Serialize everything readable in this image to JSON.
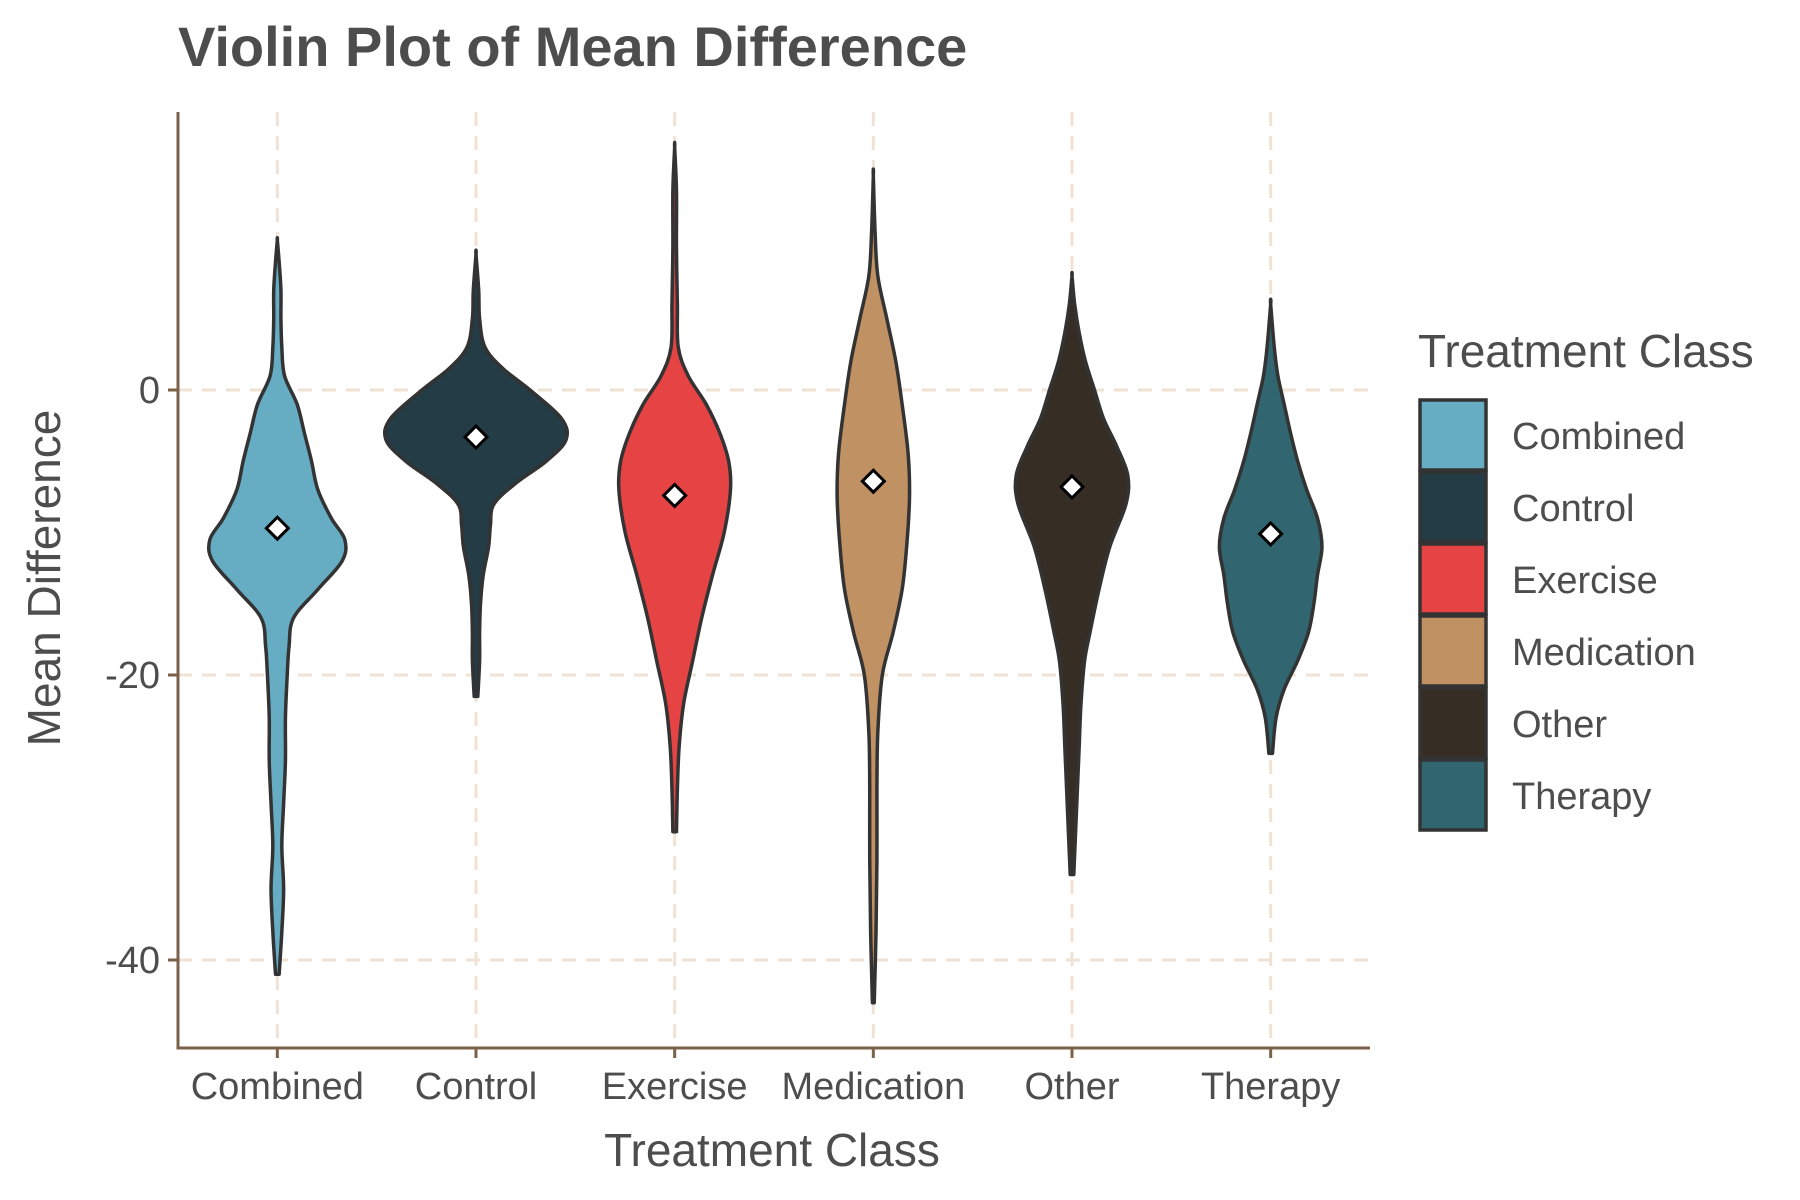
{
  "chart_data": {
    "type": "violin",
    "title": "Violin Plot of Mean Difference",
    "xlabel": "Treatment Class",
    "ylabel": "Mean Difference",
    "ylim": [
      -46,
      19
    ],
    "yticks": [
      0,
      -20,
      -40
    ],
    "ytick_labels": [
      "0",
      "-20",
      "-40"
    ],
    "grid": true,
    "legend": {
      "title": "Treatment Class",
      "placement": "right"
    },
    "categories": [
      "Combined",
      "Control",
      "Exercise",
      "Medication",
      "Other",
      "Therapy"
    ],
    "series": [
      {
        "name": "Combined",
        "color": "#66adc4",
        "min": -41,
        "max": 10.5,
        "mean": -9.7,
        "density": [
          [
            -41,
            0.02
          ],
          [
            -38,
            0.05
          ],
          [
            -35,
            0.07
          ],
          [
            -32,
            0.05
          ],
          [
            -29,
            0.07
          ],
          [
            -26,
            0.09
          ],
          [
            -23,
            0.09
          ],
          [
            -20,
            0.11
          ],
          [
            -18,
            0.13
          ],
          [
            -16,
            0.18
          ],
          [
            -14,
            0.45
          ],
          [
            -12,
            0.72
          ],
          [
            -10.5,
            0.75
          ],
          [
            -9,
            0.6
          ],
          [
            -7,
            0.45
          ],
          [
            -5,
            0.38
          ],
          [
            -3,
            0.3
          ],
          [
            -1,
            0.22
          ],
          [
            1,
            0.08
          ],
          [
            3,
            0.05
          ],
          [
            5,
            0.04
          ],
          [
            7,
            0.04
          ],
          [
            9,
            0.02
          ],
          [
            10.5,
            0.0
          ]
        ]
      },
      {
        "name": "Control",
        "color": "#243c45",
        "min": -21.5,
        "max": 9.5,
        "mean": -3.3,
        "density": [
          [
            -21.5,
            0.02
          ],
          [
            -19,
            0.04
          ],
          [
            -17,
            0.04
          ],
          [
            -15,
            0.05
          ],
          [
            -13,
            0.08
          ],
          [
            -11,
            0.14
          ],
          [
            -9.5,
            0.16
          ],
          [
            -8,
            0.2
          ],
          [
            -6.5,
            0.45
          ],
          [
            -5,
            0.78
          ],
          [
            -3.5,
            1.0
          ],
          [
            -2,
            0.95
          ],
          [
            0,
            0.6
          ],
          [
            1.5,
            0.3
          ],
          [
            3,
            0.1
          ],
          [
            5,
            0.04
          ],
          [
            7,
            0.03
          ],
          [
            9.5,
            0.0
          ]
        ]
      },
      {
        "name": "Exercise",
        "color": "#e64345",
        "min": -31,
        "max": 17,
        "mean": -7.4,
        "density": [
          [
            -31,
            0.02
          ],
          [
            -28,
            0.03
          ],
          [
            -25,
            0.05
          ],
          [
            -22,
            0.1
          ],
          [
            -19,
            0.2
          ],
          [
            -16,
            0.3
          ],
          [
            -13,
            0.42
          ],
          [
            -10,
            0.55
          ],
          [
            -7,
            0.62
          ],
          [
            -5,
            0.6
          ],
          [
            -3,
            0.5
          ],
          [
            -1,
            0.35
          ],
          [
            1,
            0.15
          ],
          [
            3,
            0.04
          ],
          [
            6,
            0.03
          ],
          [
            10,
            0.02
          ],
          [
            14,
            0.02
          ],
          [
            17,
            0.0
          ]
        ]
      },
      {
        "name": "Medication",
        "color": "#c09162",
        "min": -43,
        "max": 15,
        "mean": -6.4,
        "density": [
          [
            -43,
            0.01
          ],
          [
            -38,
            0.03
          ],
          [
            -33,
            0.04
          ],
          [
            -28,
            0.04
          ],
          [
            -24,
            0.05
          ],
          [
            -20,
            0.1
          ],
          [
            -17,
            0.22
          ],
          [
            -14,
            0.32
          ],
          [
            -11,
            0.37
          ],
          [
            -8,
            0.4
          ],
          [
            -6,
            0.4
          ],
          [
            -4,
            0.38
          ],
          [
            -1,
            0.32
          ],
          [
            2,
            0.25
          ],
          [
            5,
            0.15
          ],
          [
            8,
            0.05
          ],
          [
            11,
            0.02
          ],
          [
            15,
            0.0
          ]
        ]
      },
      {
        "name": "Other",
        "color": "#362d24",
        "min": -34,
        "max": 8,
        "mean": -6.8,
        "density": [
          [
            -34,
            0.02
          ],
          [
            -31,
            0.04
          ],
          [
            -28,
            0.06
          ],
          [
            -25,
            0.08
          ],
          [
            -22,
            0.1
          ],
          [
            -19,
            0.14
          ],
          [
            -17,
            0.2
          ],
          [
            -14,
            0.3
          ],
          [
            -11,
            0.42
          ],
          [
            -8,
            0.6
          ],
          [
            -6,
            0.62
          ],
          [
            -4,
            0.5
          ],
          [
            -2,
            0.35
          ],
          [
            0,
            0.25
          ],
          [
            2,
            0.15
          ],
          [
            4,
            0.08
          ],
          [
            6,
            0.03
          ],
          [
            8,
            0.0
          ]
        ]
      },
      {
        "name": "Therapy",
        "color": "#31656f",
        "min": -25.5,
        "max": 6,
        "mean": -10.1,
        "density": [
          [
            -25.5,
            0.02
          ],
          [
            -23,
            0.06
          ],
          [
            -21,
            0.15
          ],
          [
            -19,
            0.3
          ],
          [
            -17,
            0.42
          ],
          [
            -15,
            0.48
          ],
          [
            -13,
            0.52
          ],
          [
            -11,
            0.57
          ],
          [
            -9,
            0.52
          ],
          [
            -7,
            0.4
          ],
          [
            -5,
            0.3
          ],
          [
            -3,
            0.22
          ],
          [
            -1,
            0.15
          ],
          [
            1,
            0.08
          ],
          [
            3,
            0.04
          ],
          [
            6,
            0.0
          ]
        ]
      }
    ]
  }
}
